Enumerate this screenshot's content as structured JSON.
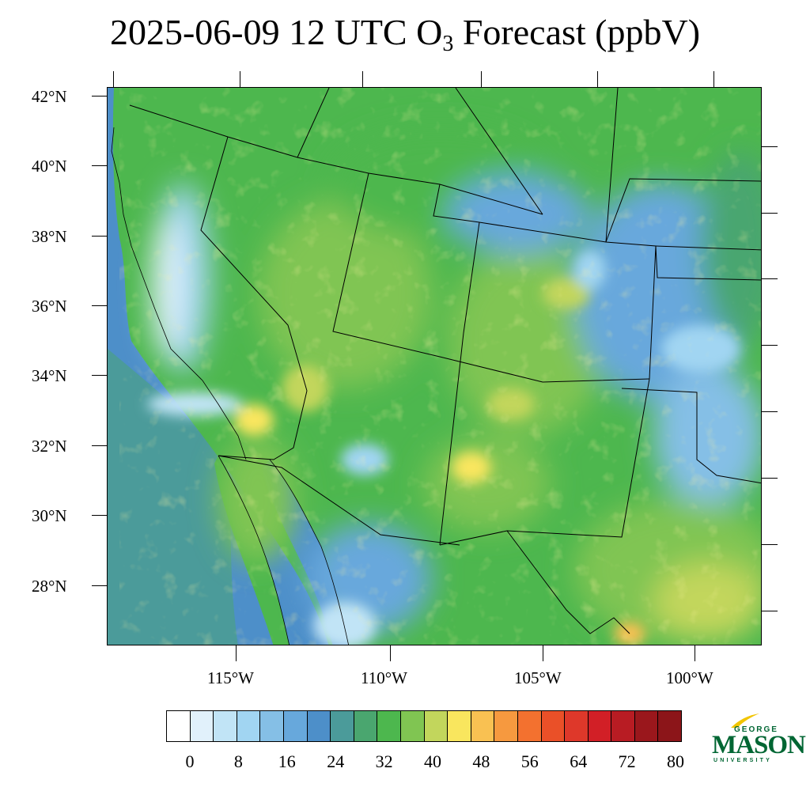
{
  "title": {
    "prefix": "2025-06-09 12 UTC O",
    "subscript": "3",
    "suffix": " Forecast (ppbV)"
  },
  "map": {
    "latitude_labels": [
      "42°N",
      "40°N",
      "38°N",
      "36°N",
      "34°N",
      "32°N",
      "30°N",
      "28°N"
    ],
    "longitude_labels": [
      "115°W",
      "110°W",
      "105°W",
      "100°W"
    ],
    "ozone_palette": [
      "#ffffff",
      "#e1f1fb",
      "#c1e4f6",
      "#a1d5f2",
      "#85bfe6",
      "#67a8dc",
      "#4d8fc9",
      "#4b9b9a",
      "#4aa66f",
      "#4db74e",
      "#80c552",
      "#c2d65c",
      "#f9e65e",
      "#f9c152",
      "#f6993f",
      "#f3712f",
      "#ea5028",
      "#de382a",
      "#d21f26",
      "#b81c23",
      "#9a171c",
      "#8c1519"
    ]
  },
  "colorbar": {
    "labels": [
      "0",
      "8",
      "16",
      "24",
      "32",
      "40",
      "48",
      "56",
      "64",
      "72",
      "80"
    ]
  },
  "logo": {
    "line1": "GEORGE",
    "line2": "MASON",
    "line3": "UNIVERSITY"
  }
}
